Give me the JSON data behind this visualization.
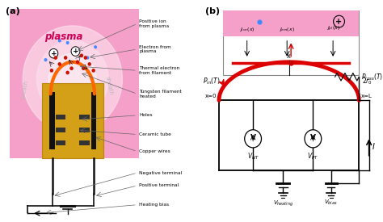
{
  "panel_a_label": "(a)",
  "panel_b_label": "(b)",
  "plasma_color": "#f5a0c8",
  "plasma_text_color": "#cc0055",
  "ceramic_color": "#d4a017",
  "wire_color": "#111111",
  "filament_color": "#ff6600",
  "sheath_text_color": "#aaaaaa",
  "background": "#ffffff",
  "labels_a": [
    "Positive ion\nfrom plasma",
    "Electron from\nplasma",
    "Thermal electron\nfrom filament",
    "Tungsten filament\nheated",
    "Holes",
    "Ceramic tube",
    "Copper wires",
    "Negative terminal",
    "Positive terminal",
    "Heating bias"
  ]
}
